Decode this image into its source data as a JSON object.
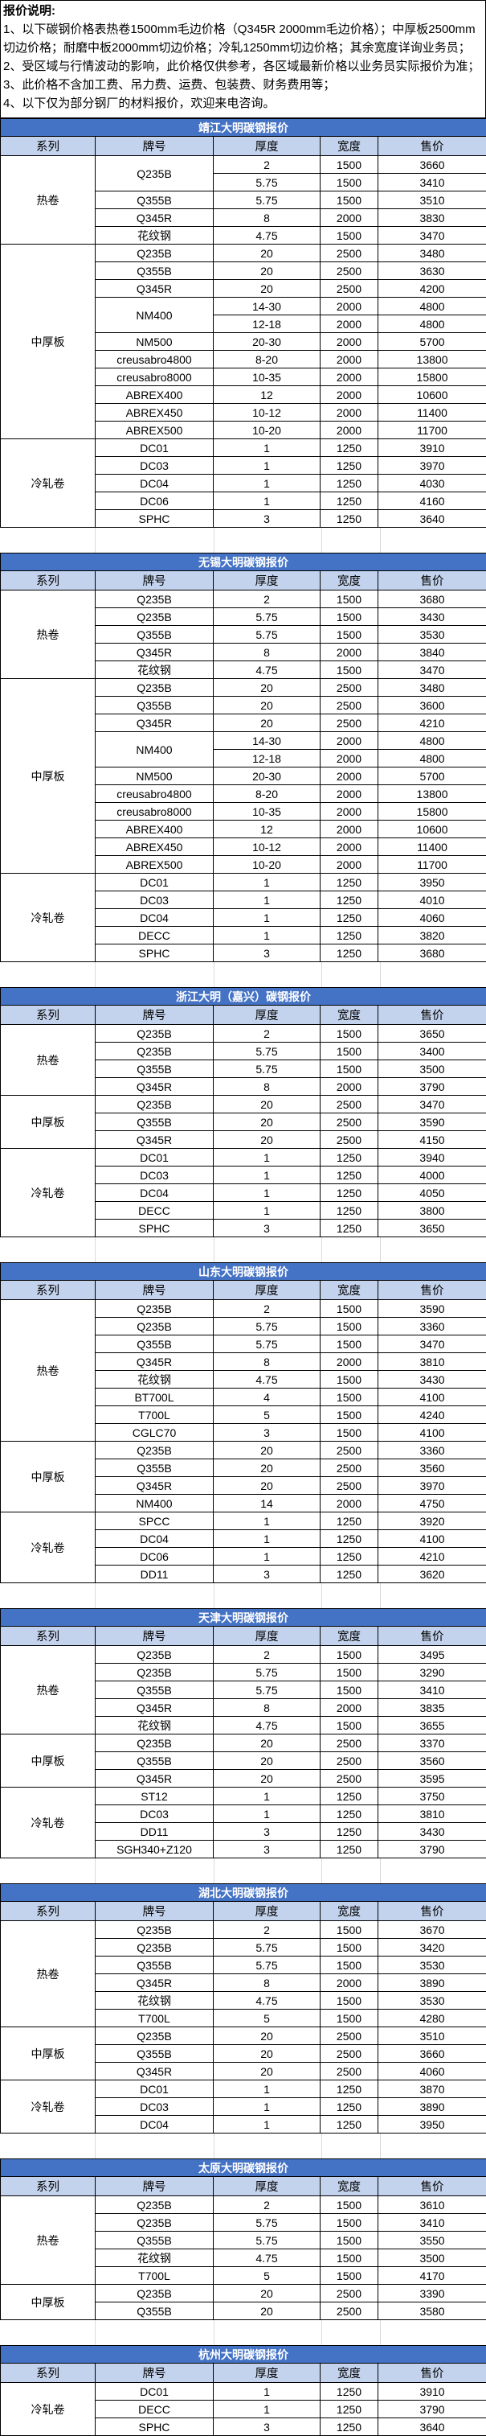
{
  "colors": {
    "title_bar": "#4472C4",
    "title_text": "#FFFFFF",
    "header_row": "#C4D3ED",
    "table_border": "#000000",
    "gap_gridline": "#D9D9D9"
  },
  "notes": {
    "title": "报价说明:",
    "items": [
      "1、以下碳钢价格表热卷1500mm毛边价格（Q345R 2000mm毛边价格）；中厚板2500mm切边价格；耐磨中板2000mm切边价格；冷轧1250mm切边价格；其余宽度详询业务员；",
      "2、受区域与行情波动的影响，此价格仅供参考，各区域最新价格以业务员实际报价为准；",
      "3、此价格不含加工费、吊力费、运费、包装费、财务费用等；",
      "4、以下仅为部分钢厂的材料报价，欢迎来电咨询。"
    ]
  },
  "columns": [
    "系列",
    "牌号",
    "厚度",
    "宽度",
    "售价"
  ],
  "tables": [
    {
      "title": "靖江大明碳钢报价",
      "sections": [
        {
          "series": "热卷",
          "rows": [
            {
              "grade": "Q235B",
              "grade_span": 2,
              "thickness": "2",
              "width": "1500",
              "price": "3660"
            },
            {
              "grade": "",
              "grade_span": 0,
              "thickness": "5.75",
              "width": "1500",
              "price": "3410"
            },
            {
              "grade": "Q355B",
              "thickness": "5.75",
              "width": "1500",
              "price": "3510"
            },
            {
              "grade": "Q345R",
              "thickness": "8",
              "width": "2000",
              "price": "3830"
            },
            {
              "grade": "花纹钢",
              "thickness": "4.75",
              "width": "1500",
              "price": "3470"
            }
          ]
        },
        {
          "series": "中厚板",
          "rows": [
            {
              "grade": "Q235B",
              "thickness": "20",
              "width": "2500",
              "price": "3480"
            },
            {
              "grade": "Q355B",
              "thickness": "20",
              "width": "2500",
              "price": "3630"
            },
            {
              "grade": "Q345R",
              "thickness": "20",
              "width": "2500",
              "price": "4200"
            },
            {
              "grade": "NM400",
              "grade_span": 2,
              "thickness": "14-30",
              "width": "2000",
              "price": "4800"
            },
            {
              "grade": "",
              "grade_span": 0,
              "thickness": "12-18",
              "width": "2000",
              "price": "4800"
            },
            {
              "grade": "NM500",
              "thickness": "20-30",
              "width": "2000",
              "price": "5700"
            },
            {
              "grade": "creusabro4800",
              "thickness": "8-20",
              "width": "2000",
              "price": "13800"
            },
            {
              "grade": "creusabro8000",
              "thickness": "10-35",
              "width": "2000",
              "price": "15800"
            },
            {
              "grade": "ABREX400",
              "thickness": "12",
              "width": "2000",
              "price": "10600"
            },
            {
              "grade": "ABREX450",
              "thickness": "10-12",
              "width": "2000",
              "price": "11400"
            },
            {
              "grade": "ABREX500",
              "thickness": "10-20",
              "width": "2000",
              "price": "11700"
            }
          ]
        },
        {
          "series": "冷轧卷",
          "rows": [
            {
              "grade": "DC01",
              "thickness": "1",
              "width": "1250",
              "price": "3910"
            },
            {
              "grade": "DC03",
              "thickness": "1",
              "width": "1250",
              "price": "3970"
            },
            {
              "grade": "DC04",
              "thickness": "1",
              "width": "1250",
              "price": "4030"
            },
            {
              "grade": "DC06",
              "thickness": "1",
              "width": "1250",
              "price": "4160"
            },
            {
              "grade": "SPHC",
              "thickness": "3",
              "width": "1250",
              "price": "3640"
            }
          ]
        }
      ]
    },
    {
      "title": "无锡大明碳钢报价",
      "sections": [
        {
          "series": "热卷",
          "rows": [
            {
              "grade": "Q235B",
              "thickness": "2",
              "width": "1500",
              "price": "3680"
            },
            {
              "grade": "Q235B",
              "thickness": "5.75",
              "width": "1500",
              "price": "3430"
            },
            {
              "grade": "Q355B",
              "thickness": "5.75",
              "width": "1500",
              "price": "3530"
            },
            {
              "grade": "Q345R",
              "thickness": "8",
              "width": "2000",
              "price": "3840"
            },
            {
              "grade": "花纹钢",
              "thickness": "4.75",
              "width": "1500",
              "price": "3470"
            }
          ]
        },
        {
          "series": "中厚板",
          "rows": [
            {
              "grade": "Q235B",
              "thickness": "20",
              "width": "2500",
              "price": "3480"
            },
            {
              "grade": "Q355B",
              "thickness": "20",
              "width": "2500",
              "price": "3600"
            },
            {
              "grade": "Q345R",
              "thickness": "20",
              "width": "2500",
              "price": "4210"
            },
            {
              "grade": "NM400",
              "grade_span": 2,
              "thickness": "14-30",
              "width": "2000",
              "price": "4800"
            },
            {
              "grade": "",
              "grade_span": 0,
              "thickness": "12-18",
              "width": "2000",
              "price": "4800"
            },
            {
              "grade": "NM500",
              "thickness": "20-30",
              "width": "2000",
              "price": "5700"
            },
            {
              "grade": "creusabro4800",
              "thickness": "8-20",
              "width": "2000",
              "price": "13800"
            },
            {
              "grade": "creusabro8000",
              "thickness": "10-35",
              "width": "2000",
              "price": "15800"
            },
            {
              "grade": "ABREX400",
              "thickness": "12",
              "width": "2000",
              "price": "10600"
            },
            {
              "grade": "ABREX450",
              "thickness": "10-12",
              "width": "2000",
              "price": "11400"
            },
            {
              "grade": "ABREX500",
              "thickness": "10-20",
              "width": "2000",
              "price": "11700"
            }
          ]
        },
        {
          "series": "冷轧卷",
          "rows": [
            {
              "grade": "DC01",
              "thickness": "1",
              "width": "1250",
              "price": "3950"
            },
            {
              "grade": "DC03",
              "thickness": "1",
              "width": "1250",
              "price": "4010"
            },
            {
              "grade": "DC04",
              "thickness": "1",
              "width": "1250",
              "price": "4060"
            },
            {
              "grade": "DECC",
              "thickness": "1",
              "width": "1250",
              "price": "3820"
            },
            {
              "grade": "SPHC",
              "thickness": "3",
              "width": "1250",
              "price": "3680"
            }
          ]
        }
      ]
    },
    {
      "title": "浙江大明（嘉兴）碳钢报价",
      "sections": [
        {
          "series": "热卷",
          "rows": [
            {
              "grade": "Q235B",
              "thickness": "2",
              "width": "1500",
              "price": "3650"
            },
            {
              "grade": "Q235B",
              "thickness": "5.75",
              "width": "1500",
              "price": "3400"
            },
            {
              "grade": "Q355B",
              "thickness": "5.75",
              "width": "1500",
              "price": "3500"
            },
            {
              "grade": "Q345R",
              "thickness": "8",
              "width": "2000",
              "price": "3790"
            }
          ]
        },
        {
          "series": "中厚板",
          "rows": [
            {
              "grade": "Q235B",
              "thickness": "20",
              "width": "2500",
              "price": "3470"
            },
            {
              "grade": "Q355B",
              "thickness": "20",
              "width": "2500",
              "price": "3590"
            },
            {
              "grade": "Q345R",
              "thickness": "20",
              "width": "2500",
              "price": "4150"
            }
          ]
        },
        {
          "series": "冷轧卷",
          "rows": [
            {
              "grade": "DC01",
              "thickness": "1",
              "width": "1250",
              "price": "3940"
            },
            {
              "grade": "DC03",
              "thickness": "1",
              "width": "1250",
              "price": "4000"
            },
            {
              "grade": "DC04",
              "thickness": "1",
              "width": "1250",
              "price": "4050"
            },
            {
              "grade": "DECC",
              "thickness": "1",
              "width": "1250",
              "price": "3800"
            },
            {
              "grade": "SPHC",
              "thickness": "3",
              "width": "1250",
              "price": "3650"
            }
          ]
        }
      ]
    },
    {
      "title": "山东大明碳钢报价",
      "sections": [
        {
          "series": "热卷",
          "rows": [
            {
              "grade": "Q235B",
              "thickness": "2",
              "width": "1500",
              "price": "3590"
            },
            {
              "grade": "Q235B",
              "thickness": "5.75",
              "width": "1500",
              "price": "3360"
            },
            {
              "grade": "Q355B",
              "thickness": "5.75",
              "width": "1500",
              "price": "3470"
            },
            {
              "grade": "Q345R",
              "thickness": "8",
              "width": "2000",
              "price": "3810"
            },
            {
              "grade": "花纹钢",
              "thickness": "4.75",
              "width": "1500",
              "price": "3430"
            },
            {
              "grade": "BT700L",
              "thickness": "4",
              "width": "1500",
              "price": "4100"
            },
            {
              "grade": "T700L",
              "thickness": "5",
              "width": "1500",
              "price": "4240"
            },
            {
              "grade": "CGLC70",
              "thickness": "3",
              "width": "1500",
              "price": "4100"
            }
          ]
        },
        {
          "series": "中厚板",
          "rows": [
            {
              "grade": "Q235B",
              "thickness": "20",
              "width": "2500",
              "price": "3360"
            },
            {
              "grade": "Q355B",
              "thickness": "20",
              "width": "2500",
              "price": "3560"
            },
            {
              "grade": "Q345R",
              "thickness": "20",
              "width": "2500",
              "price": "3970"
            },
            {
              "grade": "NM400",
              "thickness": "14",
              "width": "2000",
              "price": "4750"
            }
          ]
        },
        {
          "series": "冷轧卷",
          "rows": [
            {
              "grade": "SPCC",
              "thickness": "1",
              "width": "1250",
              "price": "3920"
            },
            {
              "grade": "DC04",
              "thickness": "1",
              "width": "1250",
              "price": "4100"
            },
            {
              "grade": "DC06",
              "thickness": "1",
              "width": "1250",
              "price": "4210"
            },
            {
              "grade": "DD11",
              "thickness": "3",
              "width": "1250",
              "price": "3620"
            }
          ]
        }
      ]
    },
    {
      "title": "天津大明碳钢报价",
      "sections": [
        {
          "series": "热卷",
          "rows": [
            {
              "grade": "Q235B",
              "thickness": "2",
              "width": "1500",
              "price": "3495"
            },
            {
              "grade": "Q235B",
              "thickness": "5.75",
              "width": "1500",
              "price": "3290"
            },
            {
              "grade": "Q355B",
              "thickness": "5.75",
              "width": "1500",
              "price": "3410"
            },
            {
              "grade": "Q345R",
              "thickness": "8",
              "width": "2000",
              "price": "3835"
            },
            {
              "grade": "花纹钢",
              "thickness": "4.75",
              "width": "1500",
              "price": "3655"
            }
          ]
        },
        {
          "series": "中厚板",
          "rows": [
            {
              "grade": "Q235B",
              "thickness": "20",
              "width": "2500",
              "price": "3370"
            },
            {
              "grade": "Q355B",
              "thickness": "20",
              "width": "2500",
              "price": "3560"
            },
            {
              "grade": "Q345R",
              "thickness": "20",
              "width": "2500",
              "price": "3595"
            }
          ]
        },
        {
          "series": "冷轧卷",
          "rows": [
            {
              "grade": "ST12",
              "thickness": "1",
              "width": "1250",
              "price": "3750"
            },
            {
              "grade": "DC03",
              "thickness": "1",
              "width": "1250",
              "price": "3810"
            },
            {
              "grade": "DD11",
              "thickness": "3",
              "width": "1250",
              "price": "3430"
            },
            {
              "grade": "SGH340+Z120",
              "thickness": "3",
              "width": "1250",
              "price": "3790"
            }
          ]
        }
      ]
    },
    {
      "title": "湖北大明碳钢报价",
      "sections": [
        {
          "series": "热卷",
          "rows": [
            {
              "grade": "Q235B",
              "thickness": "2",
              "width": "1500",
              "price": "3670"
            },
            {
              "grade": "Q235B",
              "thickness": "5.75",
              "width": "1500",
              "price": "3420"
            },
            {
              "grade": "Q355B",
              "thickness": "5.75",
              "width": "1500",
              "price": "3530"
            },
            {
              "grade": "Q345R",
              "thickness": "8",
              "width": "2000",
              "price": "3890"
            },
            {
              "grade": "花纹钢",
              "thickness": "4.75",
              "width": "1500",
              "price": "3530"
            },
            {
              "grade": "T700L",
              "thickness": "5",
              "width": "1500",
              "price": "4280"
            }
          ]
        },
        {
          "series": "中厚板",
          "rows": [
            {
              "grade": "Q235B",
              "thickness": "20",
              "width": "2500",
              "price": "3510"
            },
            {
              "grade": "Q355B",
              "thickness": "20",
              "width": "2500",
              "price": "3660"
            },
            {
              "grade": "Q345R",
              "thickness": "20",
              "width": "2500",
              "price": "4060"
            }
          ]
        },
        {
          "series": "冷轧卷",
          "rows": [
            {
              "grade": "DC01",
              "thickness": "1",
              "width": "1250",
              "price": "3870"
            },
            {
              "grade": "DC03",
              "thickness": "1",
              "width": "1250",
              "price": "3890"
            },
            {
              "grade": "DC04",
              "thickness": "1",
              "width": "1250",
              "price": "3950"
            }
          ]
        }
      ]
    },
    {
      "title": "太原大明碳钢报价",
      "sections": [
        {
          "series": "热卷",
          "rows": [
            {
              "grade": "Q235B",
              "thickness": "2",
              "width": "1500",
              "price": "3610"
            },
            {
              "grade": "Q235B",
              "thickness": "5.75",
              "width": "1500",
              "price": "3410"
            },
            {
              "grade": "Q355B",
              "thickness": "5.75",
              "width": "1500",
              "price": "3550"
            },
            {
              "grade": "花纹钢",
              "thickness": "4.75",
              "width": "1500",
              "price": "3500"
            },
            {
              "grade": "T700L",
              "thickness": "5",
              "width": "1500",
              "price": "4170"
            }
          ]
        },
        {
          "series": "中厚板",
          "rows": [
            {
              "grade": "Q235B",
              "thickness": "20",
              "width": "2500",
              "price": "3390"
            },
            {
              "grade": "Q355B",
              "thickness": "20",
              "width": "2500",
              "price": "3580"
            }
          ]
        }
      ]
    },
    {
      "title": "杭州大明碳钢报价",
      "sections": [
        {
          "series": "冷轧卷",
          "rows": [
            {
              "grade": "DC01",
              "thickness": "1",
              "width": "1250",
              "price": "3910"
            },
            {
              "grade": "DECC",
              "thickness": "1",
              "width": "1250",
              "price": "3790"
            },
            {
              "grade": "SPHC",
              "thickness": "3",
              "width": "1250",
              "price": "3640"
            }
          ]
        }
      ]
    }
  ]
}
